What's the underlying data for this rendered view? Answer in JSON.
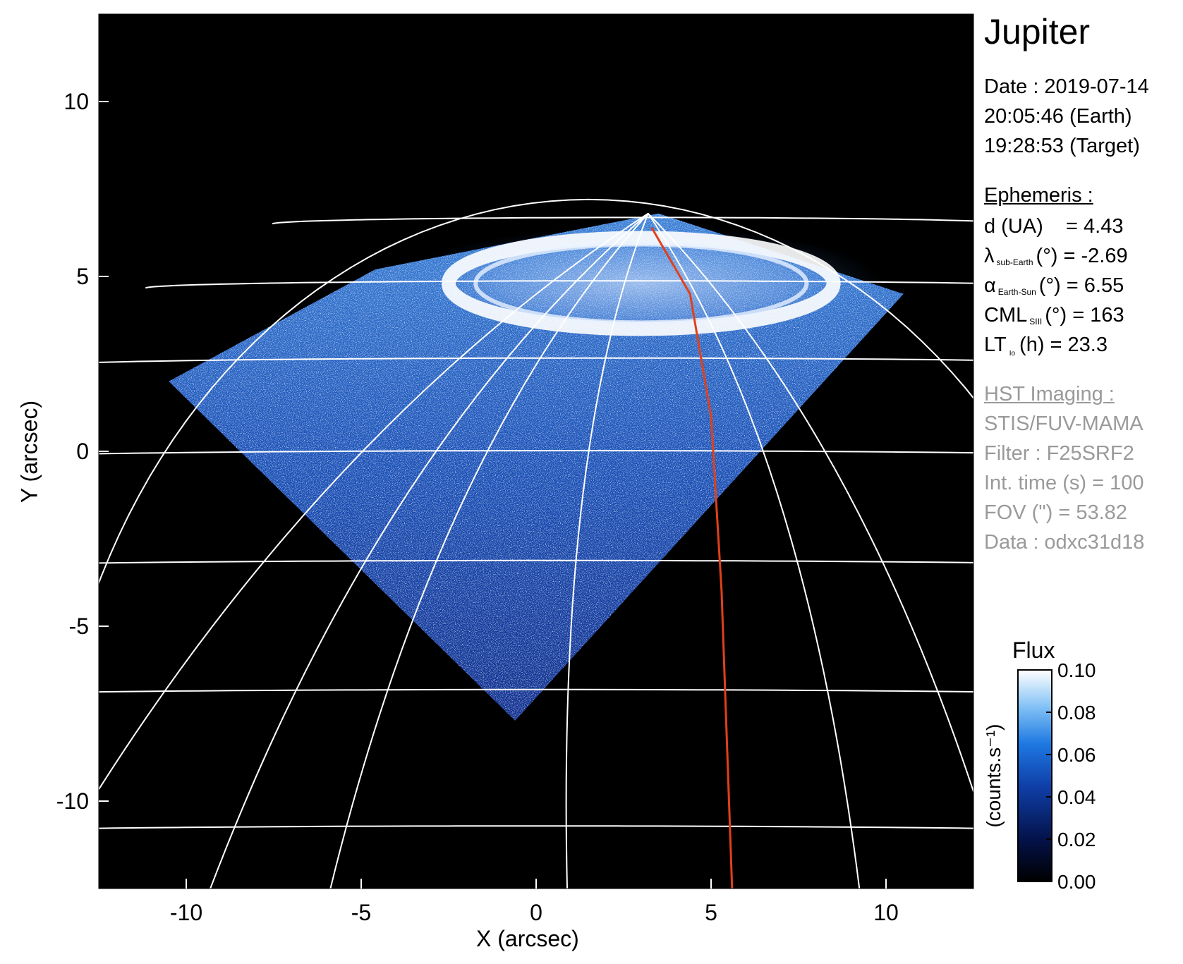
{
  "panel": {
    "title": "Jupiter",
    "date_line": "Date : 2019-07-14",
    "earth_time": "20:05:46 (Earth)",
    "target_time": "19:28:53 (Target)",
    "ephemeris_heading": "Ephemeris :",
    "d_ua": "d (UA)    = 4.43",
    "lambda_sym": "λ",
    "lambda_sub": "sub-Earth",
    "lambda_val": "(°) = -2.69",
    "alpha_sym": "α",
    "alpha_sub": "Earth-Sun",
    "alpha_val": "(°) = 6.55",
    "cml_sym": "CML",
    "cml_sub": "SIII",
    "cml_val": "(°) = 163",
    "lt_sym": "LT",
    "lt_sub": "Io",
    "lt_val": "(h) = 23.3",
    "hst_heading": "HST Imaging :",
    "instrument": "STIS/FUV-MAMA",
    "filter": "Filter : F25SRF2",
    "int_time": "Int. time (s) = 100",
    "fov": "FOV (\") = 53.82",
    "data_id": "Data : odxc31d18"
  },
  "colors": {
    "background": "#000000",
    "grid": "#ffffff",
    "meridian_highlight": "#e0401a",
    "aurora_low": "#08205a",
    "aurora_mid": "#1f6fd8",
    "aurora_high": "#eef6ff"
  },
  "chart_data": {
    "type": "heatmap",
    "title": "Jupiter",
    "xlabel": "X (arcsec)",
    "ylabel": "Y (arcsec)",
    "xlim": [
      -12.5,
      12.5
    ],
    "ylim": [
      -12.5,
      12.5
    ],
    "xticks": [
      -10,
      -5,
      0,
      5,
      10
    ],
    "yticks": [
      -10,
      -5,
      0,
      5,
      10
    ],
    "colorbar": {
      "title": "Flux",
      "label": "(counts.s⁻¹)",
      "range": [
        0.0,
        0.1
      ],
      "ticks": [
        "0.00",
        "0.02",
        "0.04",
        "0.06",
        "0.08",
        "0.10"
      ],
      "colormap": "black-navy-blue-white"
    },
    "detector_footprint": [
      [
        -10.5,
        2.0
      ],
      [
        -0.6,
        -7.7
      ],
      [
        10.5,
        4.5
      ],
      [
        3.5,
        6.8
      ],
      [
        -4.6,
        5.2
      ]
    ],
    "auroral_oval": {
      "center": [
        3.0,
        4.8
      ],
      "x_semi_axis": 5.5,
      "y_semi_axis": 1.3
    },
    "highlighted_meridian": [
      [
        3.3,
        6.4
      ],
      [
        4.4,
        4.5
      ],
      [
        5.0,
        1.0
      ],
      [
        5.3,
        -4.0
      ],
      [
        5.6,
        -12.5
      ]
    ],
    "grid": "latitude/longitude lines projected on the planetary disc"
  }
}
